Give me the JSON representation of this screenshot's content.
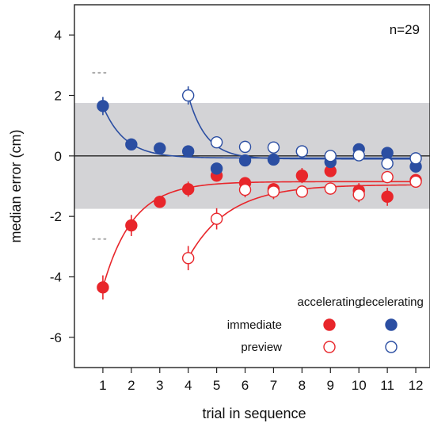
{
  "chart_data": {
    "type": "scatter",
    "title": "",
    "xlabel": "trial in sequence",
    "ylabel": "median error (cm)",
    "xlim": [
      0,
      12.5
    ],
    "ylim": [
      -7,
      5
    ],
    "x_ticks": [
      1,
      2,
      3,
      4,
      5,
      6,
      7,
      8,
      9,
      10,
      11,
      12
    ],
    "y_ticks": [
      4,
      2,
      0,
      -2,
      -4,
      -6
    ],
    "y_tick_labels": [
      "4",
      "2",
      "0",
      "-2",
      "-4",
      "-6"
    ],
    "annotation": "n=29",
    "shaded_band": [
      -1.75,
      1.75
    ],
    "zero_line": 0,
    "reference_dots_y": [
      2.75,
      -2.75
    ],
    "reference_dots_x": [
      0.65,
      1.2
    ],
    "legend": {
      "columns": [
        "accelerating",
        "decelerating"
      ],
      "rows": [
        "immediate",
        "preview"
      ],
      "placement": "bottom-right"
    },
    "colors": {
      "red": "#e8262b",
      "blue": "#2b4ea2",
      "band": "#d3d3d6",
      "dots": "#aaaaaa"
    },
    "series": [
      {
        "group": "accelerating-immediate",
        "color": "red",
        "filled": true,
        "x": [
          1,
          2,
          3,
          4,
          5,
          6,
          7,
          8,
          9,
          10,
          11,
          12
        ],
        "y": [
          -4.35,
          -2.3,
          -1.52,
          -1.1,
          -0.65,
          -0.9,
          -1.1,
          -0.65,
          -0.5,
          -1.15,
          -1.35,
          -0.8
        ],
        "err": [
          0.4,
          0.35,
          0.2,
          0.25,
          0.2,
          0.2,
          0.2,
          0.25,
          0.2,
          0.25,
          0.3,
          0.2
        ]
      },
      {
        "group": "accelerating-preview",
        "color": "red",
        "filled": false,
        "x": [
          4,
          5,
          6,
          7,
          8,
          9,
          10,
          11,
          12
        ],
        "y": [
          -3.38,
          -2.08,
          -1.12,
          -1.18,
          -1.18,
          -1.08,
          -1.28,
          -0.7,
          -0.85
        ],
        "err": [
          0.4,
          0.35,
          0.25,
          0.25,
          0.2,
          0.2,
          0.25,
          0.2,
          0.2
        ]
      },
      {
        "group": "decelerating-immediate",
        "color": "blue",
        "filled": true,
        "x": [
          1,
          2,
          3,
          4,
          5,
          6,
          7,
          8,
          9,
          10,
          11,
          12
        ],
        "y": [
          1.65,
          0.38,
          0.25,
          0.15,
          -0.42,
          -0.15,
          -0.12,
          0.15,
          -0.2,
          0.22,
          0.1,
          -0.35
        ],
        "err": [
          0.3,
          0.15,
          0.12,
          0.15,
          0.15,
          0.15,
          0.15,
          0.15,
          0.15,
          0.15,
          0.15,
          0.2
        ]
      },
      {
        "group": "decelerating-preview",
        "color": "blue",
        "filled": false,
        "x": [
          4,
          5,
          6,
          7,
          8,
          9,
          10,
          11,
          12
        ],
        "y": [
          2.0,
          0.45,
          0.3,
          0.28,
          0.15,
          0.0,
          0.02,
          -0.25,
          -0.08
        ],
        "err": [
          0.3,
          0.15,
          0.15,
          0.15,
          0.15,
          0.15,
          0.15,
          0.15,
          0.15
        ]
      }
    ],
    "fit_curves": [
      {
        "group": "accelerating-immediate",
        "color": "red",
        "x0": 1,
        "x1": 12,
        "asymptote": -0.85,
        "amplitude": -3.5,
        "rate": 0.95
      },
      {
        "group": "accelerating-preview",
        "color": "red",
        "x0": 4,
        "x1": 12,
        "asymptote": -0.95,
        "amplitude": -2.43,
        "rate": 0.7
      },
      {
        "group": "decelerating-immediate",
        "color": "blue",
        "x0": 1,
        "x1": 12,
        "asymptote": -0.07,
        "amplitude": 1.72,
        "rate": 1.3
      },
      {
        "group": "decelerating-preview",
        "color": "blue",
        "x0": 4,
        "x1": 12,
        "asymptote": -0.1,
        "amplitude": 2.1,
        "rate": 1.6
      }
    ]
  }
}
